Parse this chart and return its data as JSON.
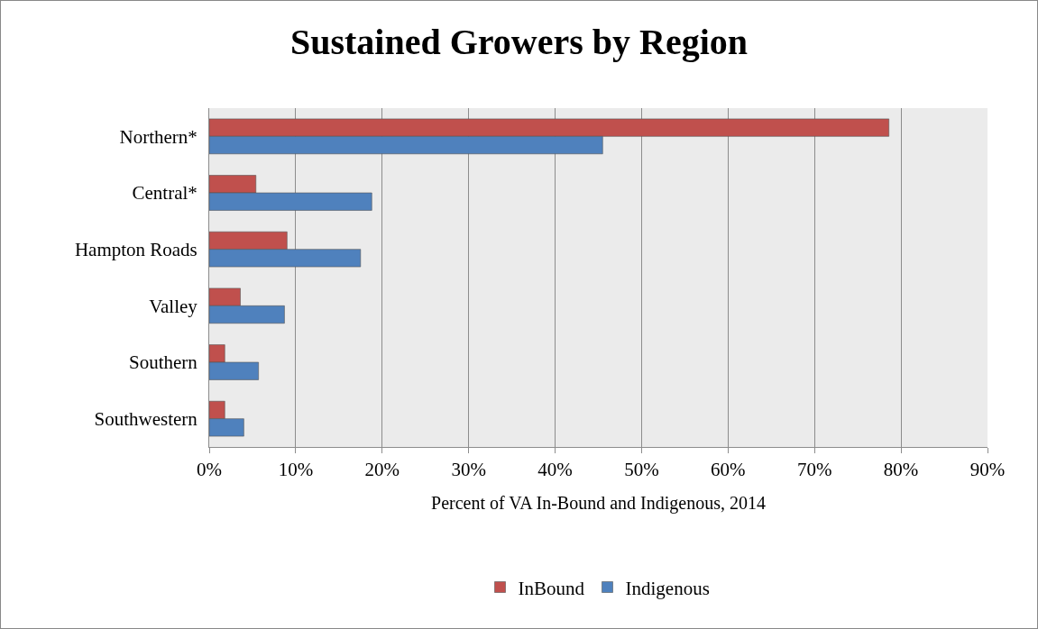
{
  "chart_data": {
    "type": "bar",
    "orientation": "horizontal",
    "title": "Sustained Growers by Region",
    "xlabel": "Percent of VA In-Bound and Indigenous, 2014",
    "categories": [
      "Northern*",
      "Central*",
      "Hampton Roads",
      "Valley",
      "Southern",
      "Southwestern"
    ],
    "series": [
      {
        "name": "InBound",
        "color": "#c0504d",
        "values": [
          78.6,
          5.4,
          9.0,
          3.6,
          1.8,
          1.8
        ]
      },
      {
        "name": "Indigenous",
        "color": "#4f81bd",
        "values": [
          45.5,
          18.8,
          17.5,
          8.7,
          5.7,
          4.0
        ]
      }
    ],
    "xlim": [
      0,
      90
    ],
    "xticks": [
      {
        "value": 0,
        "label": "0%"
      },
      {
        "value": 10,
        "label": "10%"
      },
      {
        "value": 20,
        "label": "20%"
      },
      {
        "value": 30,
        "label": "30%"
      },
      {
        "value": 40,
        "label": "40%"
      },
      {
        "value": 50,
        "label": "50%"
      },
      {
        "value": 60,
        "label": "60%"
      },
      {
        "value": 70,
        "label": "70%"
      },
      {
        "value": 80,
        "label": "80%"
      },
      {
        "value": 90,
        "label": "90%"
      }
    ],
    "grid": "x",
    "legend": "bottom"
  }
}
